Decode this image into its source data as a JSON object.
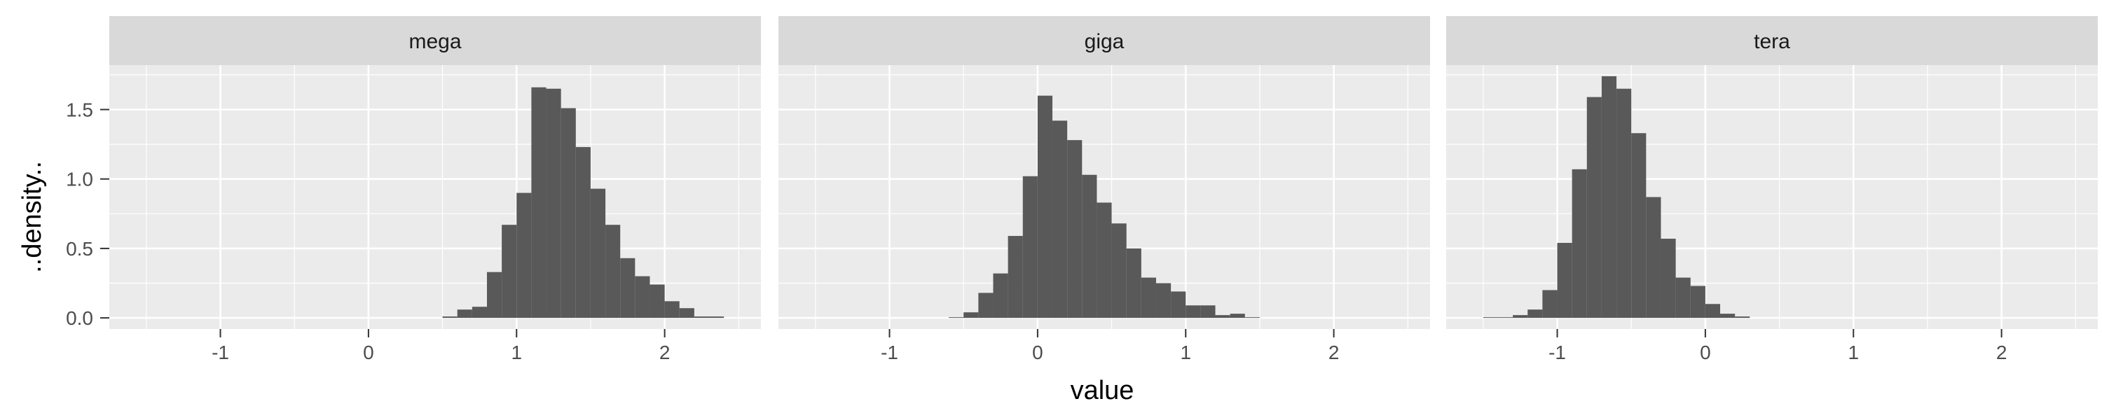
{
  "chart_data": {
    "type": "bar",
    "xlabel": "value",
    "ylabel": "..density..",
    "xlim": [
      -1.75,
      2.65
    ],
    "ylim": [
      -0.08,
      1.82
    ],
    "x_ticks": [
      -1,
      0,
      1,
      2
    ],
    "x_tick_labels": [
      "-1",
      "0",
      "1",
      "2"
    ],
    "y_ticks": [
      0.0,
      0.5,
      1.0,
      1.5
    ],
    "y_tick_labels": [
      "0.0",
      "0.5",
      "1.0",
      "1.5"
    ],
    "grid": true,
    "bin_width": 0.1,
    "series": [
      {
        "name": "mega",
        "bin_starts": [
          0.5,
          0.6,
          0.7,
          0.8,
          0.9,
          1.0,
          1.1,
          1.2,
          1.3,
          1.4,
          1.5,
          1.6,
          1.7,
          1.8,
          1.9,
          2.0,
          2.1,
          2.2,
          2.3
        ],
        "values": [
          0.01,
          0.06,
          0.08,
          0.33,
          0.67,
          0.9,
          1.66,
          1.65,
          1.51,
          1.23,
          0.93,
          0.67,
          0.43,
          0.3,
          0.24,
          0.12,
          0.07,
          0.01,
          0.01
        ]
      },
      {
        "name": "giga",
        "bin_starts": [
          -0.6,
          -0.5,
          -0.4,
          -0.3,
          -0.2,
          -0.1,
          0.0,
          0.1,
          0.2,
          0.3,
          0.4,
          0.5,
          0.6,
          0.7,
          0.8,
          0.9,
          1.0,
          1.1,
          1.2,
          1.3,
          1.4
        ],
        "values": [
          0.005,
          0.04,
          0.18,
          0.32,
          0.59,
          1.02,
          1.6,
          1.42,
          1.28,
          1.03,
          0.83,
          0.68,
          0.5,
          0.29,
          0.25,
          0.19,
          0.09,
          0.09,
          0.02,
          0.03,
          0.005
        ]
      },
      {
        "name": "tera",
        "bin_starts": [
          -1.5,
          -1.4,
          -1.3,
          -1.2,
          -1.1,
          -1.0,
          -0.9,
          -0.8,
          -0.7,
          -0.6,
          -0.5,
          -0.4,
          -0.3,
          -0.2,
          -0.1,
          0.0,
          0.1,
          0.2
        ],
        "values": [
          0.005,
          0.005,
          0.02,
          0.06,
          0.2,
          0.54,
          1.07,
          1.59,
          1.74,
          1.65,
          1.33,
          0.87,
          0.57,
          0.29,
          0.23,
          0.1,
          0.03,
          0.01
        ]
      }
    ]
  },
  "colors": {
    "panel_background": "#ebebeb",
    "strip_background": "#d9d9d9",
    "grid": "#ffffff",
    "bar_fill": "#595959",
    "tick_text": "#4d4d4d",
    "strip_text": "#1a1a1a"
  }
}
